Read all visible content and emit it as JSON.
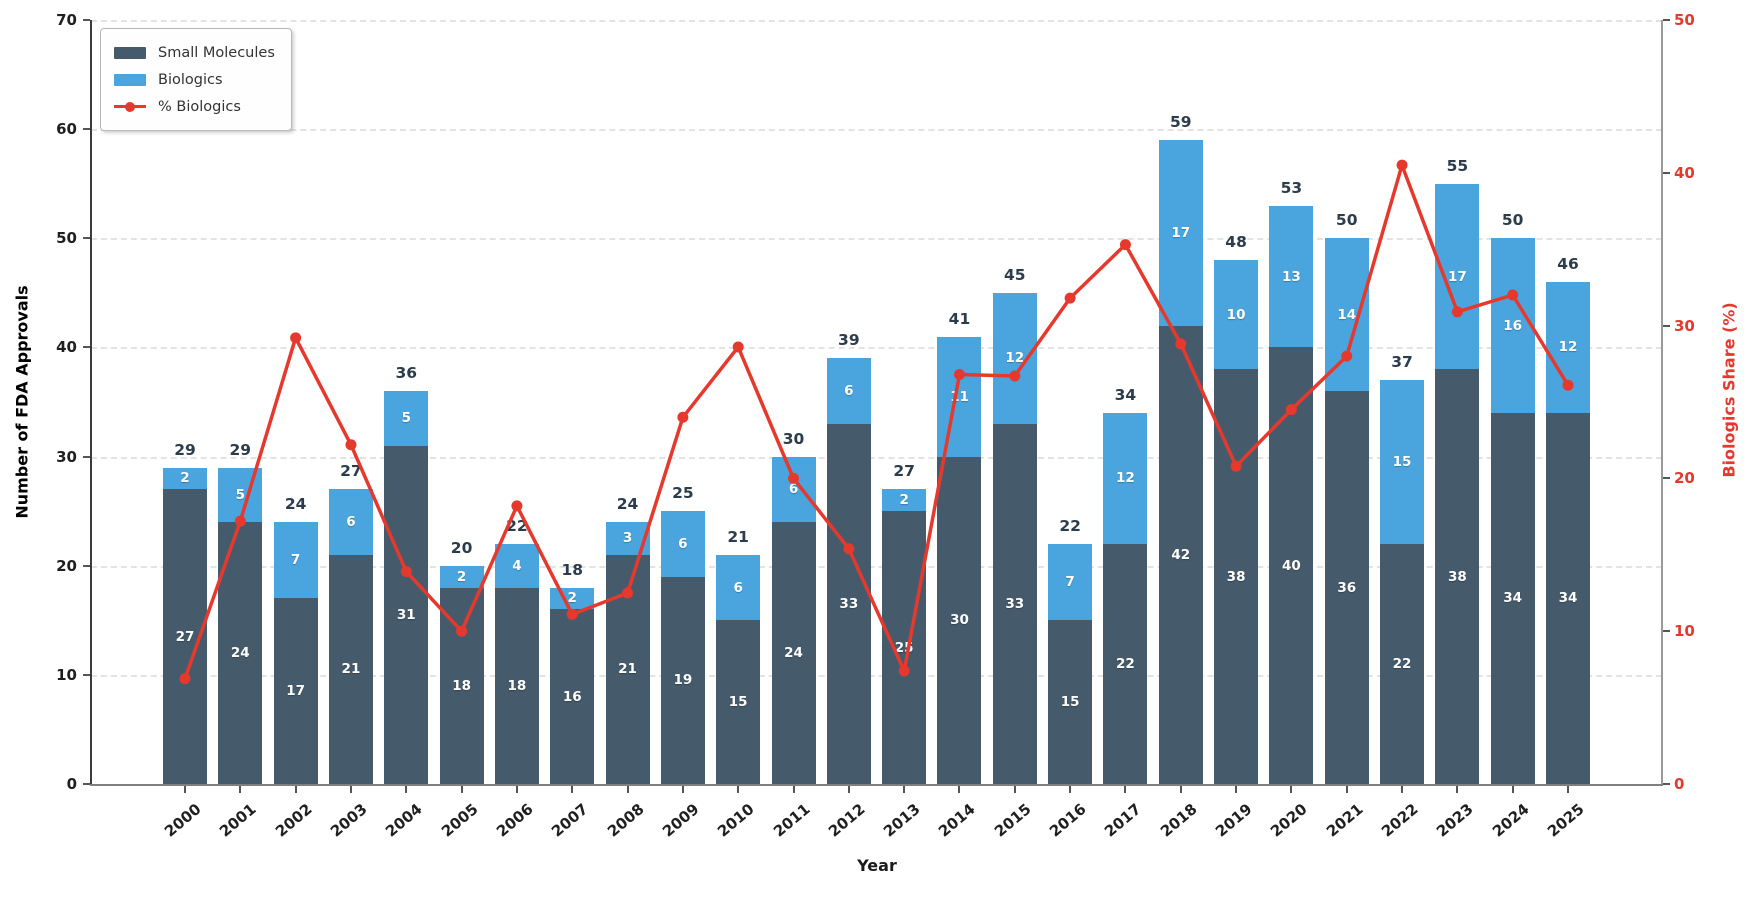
{
  "chart_data": {
    "type": "bar",
    "subtype": "stacked-bars-with-line-overlay",
    "categories": [
      "2000",
      "2001",
      "2002",
      "2003",
      "2004",
      "2005",
      "2006",
      "2007",
      "2008",
      "2009",
      "2010",
      "2011",
      "2012",
      "2013",
      "2014",
      "2015",
      "2016",
      "2017",
      "2018",
      "2019",
      "2020",
      "2021",
      "2022",
      "2023",
      "2024",
      "2025"
    ],
    "series": [
      {
        "name": "Small Molecules",
        "type": "bar",
        "stacked": true,
        "axis": "left",
        "color": "#455a6b",
        "values": [
          27,
          24,
          17,
          21,
          31,
          18,
          18,
          16,
          21,
          19,
          15,
          24,
          33,
          25,
          30,
          33,
          15,
          22,
          42,
          38,
          40,
          36,
          22,
          38,
          34,
          34
        ]
      },
      {
        "name": "Biologics",
        "type": "bar",
        "stacked": true,
        "axis": "left",
        "color": "#4aa5de",
        "values": [
          2,
          5,
          7,
          6,
          5,
          2,
          4,
          2,
          3,
          6,
          6,
          6,
          6,
          2,
          11,
          12,
          7,
          12,
          17,
          10,
          13,
          14,
          15,
          17,
          16,
          12
        ]
      },
      {
        "name": "% Biologics",
        "type": "line",
        "axis": "right",
        "color": "#e6392e",
        "marker": "circle",
        "values": [
          6.9,
          17.2,
          29.2,
          22.2,
          13.9,
          10.0,
          18.2,
          11.1,
          12.5,
          24.0,
          28.6,
          20.0,
          15.4,
          7.4,
          26.8,
          26.7,
          31.8,
          35.3,
          28.8,
          20.8,
          24.5,
          28.0,
          40.5,
          30.9,
          32.0,
          26.1
        ]
      }
    ],
    "bar_totals": [
      29,
      29,
      24,
      27,
      36,
      20,
      22,
      18,
      24,
      25,
      21,
      30,
      39,
      27,
      41,
      45,
      22,
      34,
      59,
      48,
      53,
      50,
      37,
      55,
      50,
      46
    ],
    "xlabel": "Year",
    "ylabel_left": "Number of FDA Approvals",
    "ylabel_right": "Biologics Share (%)",
    "ylim_left": [
      0,
      70
    ],
    "ylim_right": [
      0,
      50
    ],
    "yticks_left": [
      0,
      10,
      20,
      30,
      40,
      50,
      60,
      70
    ],
    "yticks_right": [
      0,
      10,
      20,
      30,
      40,
      50
    ],
    "grid": "horizontal dashed",
    "legend_position": "upper left"
  },
  "legend": {
    "items": [
      {
        "label": "Small Molecules",
        "swatch": "bar-dark"
      },
      {
        "label": "Biologics",
        "swatch": "bar-blue"
      },
      {
        "label": "% Biologics",
        "swatch": "line-marker"
      }
    ]
  },
  "colors": {
    "small_molecules_bar": "#455a6b",
    "biologics_bar": "#4aa5de",
    "pct_line": "#e6392e",
    "total_label": "#2b3c4d",
    "inside_label": "#ffffff",
    "grid": "#e3e3e3"
  }
}
